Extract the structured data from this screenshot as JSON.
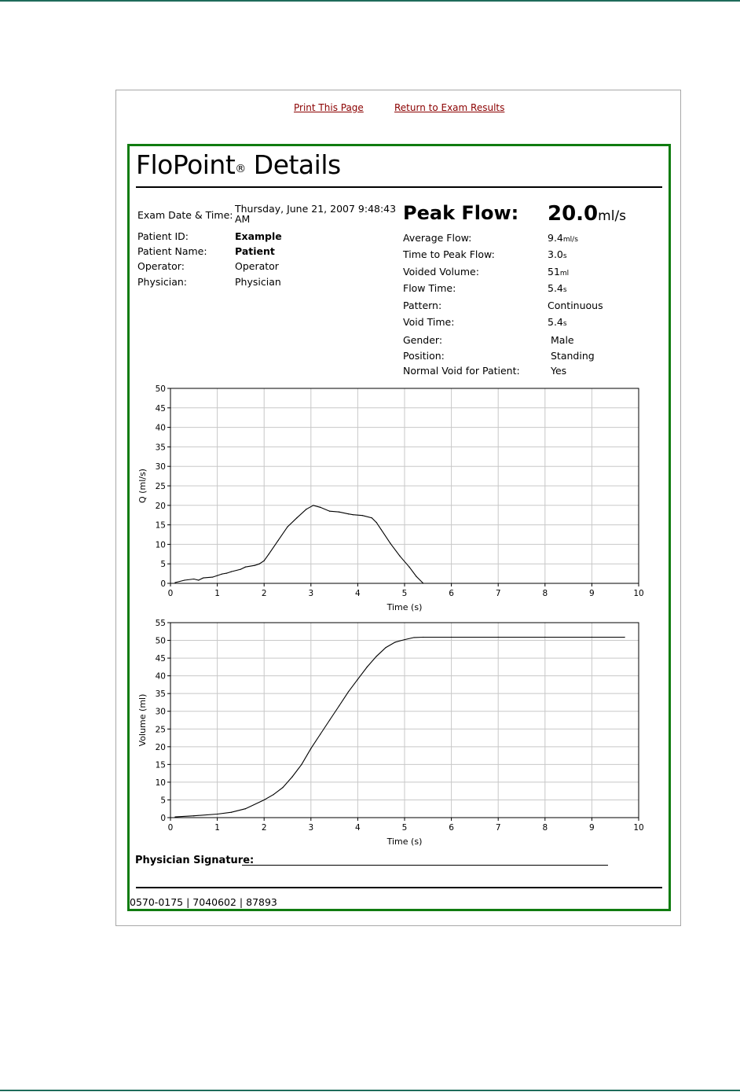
{
  "links": {
    "print": "Print This Page",
    "return": "Return to Exam Results"
  },
  "report": {
    "title": "FloPoint",
    "title_mark": "®",
    "title_suffix": "Details",
    "info": [
      {
        "label": "Exam Date & Time:",
        "value": "Thursday, June 21, 2007 9:48:43 AM"
      },
      {
        "label": "Patient ID:",
        "value": "Example"
      },
      {
        "label": "Patient Name:",
        "value": "Patient"
      },
      {
        "label": "Operator:",
        "value": "Operator"
      },
      {
        "label": "Physician:",
        "value": "Physician"
      }
    ],
    "peak_flow": {
      "label": "Peak Flow:",
      "value": "20.0",
      "unit": "ml/s"
    },
    "metrics": [
      {
        "label": "Average Flow:",
        "value": "9.4",
        "unit": "ml/s"
      },
      {
        "label": "Time to Peak Flow:",
        "value": "3.0",
        "unit": "s"
      },
      {
        "label": "Voided Volume:",
        "value": "51",
        "unit": "ml"
      },
      {
        "label": "Flow Time:",
        "value": "5.4",
        "unit": "s"
      },
      {
        "label": "Pattern:",
        "value": "Continuous",
        "unit": ""
      },
      {
        "label": "Void Time:",
        "value": "5.4",
        "unit": "s"
      },
      {
        "label": "Gender:",
        "value": "Male",
        "unit": ""
      },
      {
        "label": "Position:",
        "value": "Standing",
        "unit": ""
      },
      {
        "label": "Normal Void for Patient:",
        "value": "Yes",
        "unit": ""
      }
    ],
    "signature_label": "Physician Signature:",
    "footer_code": "0570-0175 | 7040602 | 87893"
  },
  "colors": {
    "frame_border": "#107c10",
    "link": "#8b0000",
    "page_rule": "#1e6b5a",
    "grid": "#c8c8c8"
  },
  "chart_data": [
    {
      "type": "line",
      "xlabel": "Time (s)",
      "ylabel": "Q (ml/s)",
      "xlim": [
        0,
        10
      ],
      "ylim": [
        0,
        50
      ],
      "xticks": [
        0,
        1,
        2,
        3,
        4,
        5,
        6,
        7,
        8,
        9,
        10
      ],
      "yticks": [
        0,
        5,
        10,
        15,
        20,
        25,
        30,
        35,
        40,
        45,
        50
      ],
      "grid": true,
      "series": [
        {
          "x": [
            0.1,
            0.3,
            0.5,
            0.6,
            0.7,
            0.9,
            1.0,
            1.1,
            1.2,
            1.3,
            1.5,
            1.6,
            1.8,
            1.9,
            2.0,
            2.1,
            2.3,
            2.5,
            2.7,
            2.9,
            3.05,
            3.2,
            3.4,
            3.6,
            3.8,
            3.9,
            4.1,
            4.3,
            4.4,
            4.5,
            4.7,
            4.9,
            5.1,
            5.25,
            5.4
          ],
          "y": [
            0.2,
            0.8,
            1.1,
            0.8,
            1.4,
            1.6,
            2.0,
            2.4,
            2.6,
            3.0,
            3.6,
            4.2,
            4.6,
            5.0,
            5.8,
            7.5,
            11.0,
            14.5,
            16.8,
            19.0,
            20.0,
            19.5,
            18.5,
            18.3,
            17.8,
            17.6,
            17.4,
            16.8,
            15.6,
            13.8,
            10.2,
            7.0,
            4.2,
            1.8,
            0.0
          ]
        }
      ]
    },
    {
      "type": "line",
      "xlabel": "Time (s)",
      "ylabel": "Volume (ml)",
      "xlim": [
        0,
        10
      ],
      "ylim": [
        0,
        55
      ],
      "xticks": [
        0,
        1,
        2,
        3,
        4,
        5,
        6,
        7,
        8,
        9,
        10
      ],
      "yticks": [
        0,
        5,
        10,
        15,
        20,
        25,
        30,
        35,
        40,
        45,
        50,
        55
      ],
      "grid": true,
      "series": [
        {
          "x": [
            0.1,
            0.5,
            1.0,
            1.3,
            1.6,
            2.0,
            2.2,
            2.4,
            2.6,
            2.8,
            3.0,
            3.2,
            3.4,
            3.6,
            3.8,
            4.0,
            4.2,
            4.4,
            4.6,
            4.8,
            5.0,
            5.2,
            5.4,
            6.0,
            7.0,
            8.0,
            9.0,
            9.7
          ],
          "y": [
            0.2,
            0.5,
            1.0,
            1.5,
            2.5,
            5.0,
            6.5,
            8.5,
            11.5,
            15.0,
            19.5,
            23.5,
            27.5,
            31.5,
            35.5,
            39.0,
            42.5,
            45.5,
            48.0,
            49.5,
            50.2,
            50.8,
            50.9,
            50.9,
            50.9,
            50.9,
            50.9,
            50.9
          ]
        }
      ]
    }
  ]
}
